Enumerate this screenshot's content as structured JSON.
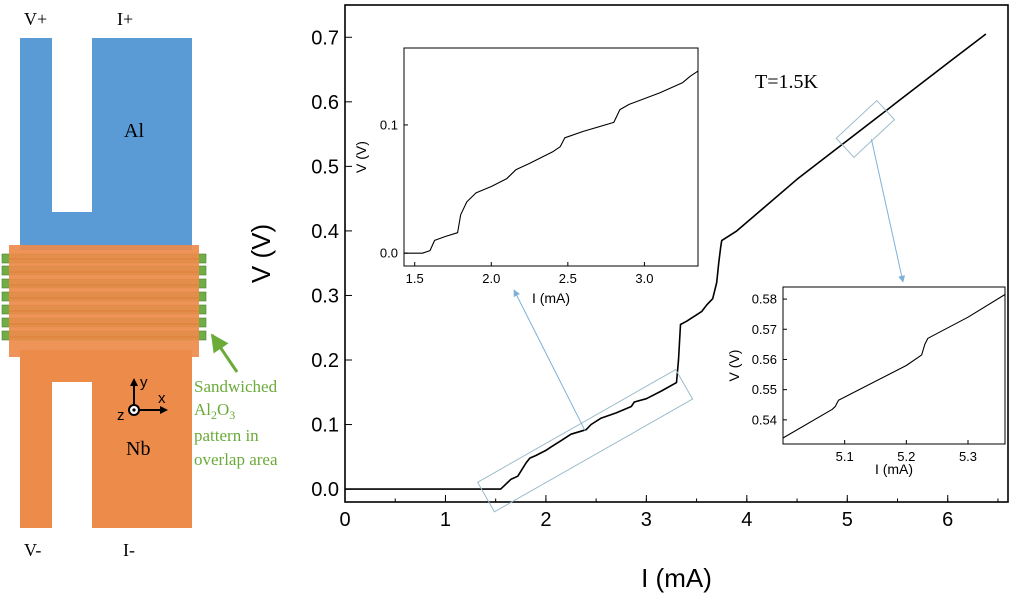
{
  "colors": {
    "al": "#5b9bd5",
    "nb": "#ed8b4b",
    "al2o3": "#70ad47",
    "annotation_text": "#6aab3a",
    "arrow": "#7fb1d6",
    "curve": "#000000"
  },
  "schematic": {
    "labels": {
      "v_plus": "V+",
      "i_plus": "I+",
      "v_minus": "V-",
      "i_minus": "I-",
      "al": "Al",
      "nb": "Nb",
      "axis_y": "y",
      "axis_x": "x",
      "axis_z": "z"
    },
    "annotation_lines": [
      "Sandwiched",
      "Al2O3",
      "pattern in",
      "overlap area"
    ]
  },
  "chart_data": [
    {
      "type": "line",
      "id": "main",
      "title": "",
      "xlabel": "I (mA)",
      "ylabel": "V (V)",
      "xlim": [
        0,
        6.6
      ],
      "ylim": [
        -0.02,
        0.75
      ],
      "xticks": [
        0,
        1,
        2,
        3,
        4,
        5,
        6
      ],
      "yticks": [
        0.0,
        0.1,
        0.2,
        0.3,
        0.4,
        0.5,
        0.6,
        0.7
      ],
      "annotation": "T=1.5K",
      "series": [
        {
          "x": [
            0,
            1.55,
            1.65,
            1.72,
            1.8,
            1.84,
            1.9,
            2.0,
            2.05,
            2.15,
            2.25,
            2.4,
            2.45,
            2.55,
            2.7,
            2.85,
            2.88,
            3.0,
            3.15,
            3.3,
            3.32,
            3.34,
            3.4,
            3.55,
            3.6,
            3.66,
            3.7,
            3.72,
            3.74,
            3.75,
            3.9,
            4.5,
            5.0,
            5.5,
            6.0,
            6.38
          ],
          "y": [
            0,
            0,
            0.015,
            0.02,
            0.04,
            0.048,
            0.052,
            0.06,
            0.065,
            0.075,
            0.085,
            0.092,
            0.1,
            0.11,
            0.118,
            0.128,
            0.135,
            0.14,
            0.152,
            0.165,
            0.2,
            0.255,
            0.26,
            0.275,
            0.285,
            0.295,
            0.32,
            0.35,
            0.375,
            0.385,
            0.4,
            0.48,
            0.54,
            0.6,
            0.66,
            0.705
          ]
        }
      ]
    },
    {
      "type": "line",
      "id": "inset-left",
      "title": "",
      "xlabel": "I (mA)",
      "ylabel": "V (V)",
      "xlim": [
        1.43,
        3.35
      ],
      "ylim": [
        -0.01,
        0.16
      ],
      "xticks": [
        1.5,
        2.0,
        2.5,
        3.0
      ],
      "xtick_labels": [
        "1.5",
        "2.0",
        "2.5",
        "3.0"
      ],
      "yticks": [
        0.0,
        0.1
      ],
      "ytick_labels": [
        "0.0",
        "0.1"
      ],
      "series": [
        {
          "x": [
            1.43,
            1.55,
            1.6,
            1.63,
            1.7,
            1.78,
            1.8,
            1.84,
            1.9,
            2.0,
            2.1,
            2.16,
            2.25,
            2.4,
            2.45,
            2.48,
            2.6,
            2.8,
            2.84,
            2.9,
            3.1,
            3.25,
            3.3,
            3.35
          ],
          "y": [
            0,
            0,
            0.002,
            0.01,
            0.013,
            0.016,
            0.03,
            0.04,
            0.047,
            0.052,
            0.058,
            0.065,
            0.07,
            0.079,
            0.083,
            0.09,
            0.095,
            0.102,
            0.112,
            0.116,
            0.125,
            0.133,
            0.138,
            0.142
          ]
        }
      ]
    },
    {
      "type": "line",
      "id": "inset-right",
      "title": "",
      "xlabel": "I (mA)",
      "ylabel": "V (V)",
      "xlim": [
        5.0,
        5.36
      ],
      "ylim": [
        0.532,
        0.584
      ],
      "xticks": [
        5.1,
        5.2,
        5.3
      ],
      "xtick_labels": [
        "5.1",
        "5.2",
        "5.3"
      ],
      "yticks": [
        0.54,
        0.55,
        0.56,
        0.57,
        0.58
      ],
      "ytick_labels": [
        "0.54",
        "0.55",
        "0.56",
        "0.57",
        "0.58"
      ],
      "series": [
        {
          "x": [
            5.0,
            5.08,
            5.085,
            5.09,
            5.2,
            5.225,
            5.23,
            5.235,
            5.3,
            5.36
          ],
          "y": [
            0.534,
            0.5435,
            0.5445,
            0.5465,
            0.558,
            0.5615,
            0.565,
            0.567,
            0.574,
            0.5815
          ]
        }
      ]
    }
  ]
}
